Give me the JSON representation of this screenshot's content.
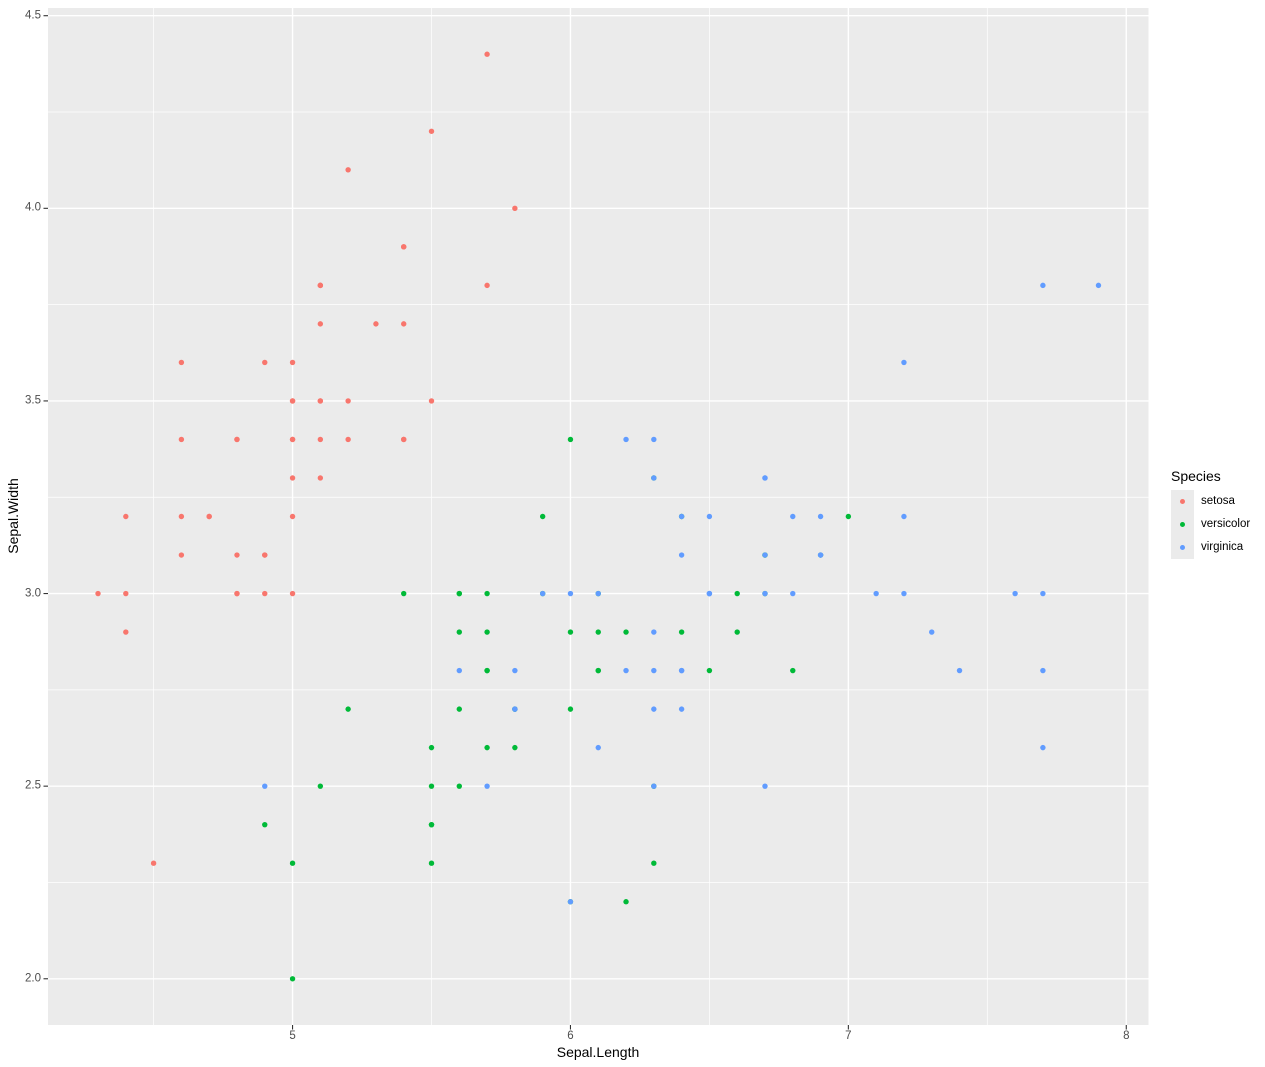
{
  "figure": {
    "x_axis_title": "Sepal.Length",
    "y_axis_title": "Sepal.Width"
  },
  "chart_data": {
    "type": "scatter",
    "title": "",
    "xlabel": "Sepal.Length",
    "ylabel": "Sepal.Width",
    "xlim": [
      4.12,
      8.08
    ],
    "ylim": [
      1.88,
      4.52
    ],
    "grid": "on",
    "panel_background": "#EBEBEB",
    "gridline_color": "#FFFFFF",
    "tick_mark_color": "#333333",
    "tick_text_color": "#4D4D4D",
    "x_ticks": {
      "values": [
        5,
        6,
        7,
        8
      ],
      "labels": [
        "5",
        "6",
        "7",
        "8"
      ],
      "minor": [
        4.5,
        5.5,
        6.5,
        7.5
      ]
    },
    "y_ticks": {
      "values": [
        2.0,
        2.5,
        3.0,
        3.5,
        4.0,
        4.5
      ],
      "labels": [
        "2.0",
        "2.5",
        "3.0",
        "3.5",
        "4.0",
        "4.5"
      ],
      "minor": [
        2.25,
        2.75,
        3.25,
        3.75,
        4.25
      ]
    },
    "legend": {
      "title": "Species",
      "position": "right",
      "key_background": "#EBEBEB"
    },
    "series": [
      {
        "name": "setosa",
        "color": "#F8766D",
        "points": [
          [
            5.1,
            3.5
          ],
          [
            4.9,
            3.0
          ],
          [
            4.7,
            3.2
          ],
          [
            4.6,
            3.1
          ],
          [
            5.0,
            3.6
          ],
          [
            5.4,
            3.9
          ],
          [
            4.6,
            3.4
          ],
          [
            5.0,
            3.4
          ],
          [
            4.4,
            2.9
          ],
          [
            4.9,
            3.1
          ],
          [
            5.4,
            3.7
          ],
          [
            4.8,
            3.4
          ],
          [
            4.8,
            3.0
          ],
          [
            4.3,
            3.0
          ],
          [
            5.8,
            4.0
          ],
          [
            5.7,
            4.4
          ],
          [
            5.4,
            3.9
          ],
          [
            5.1,
            3.5
          ],
          [
            5.7,
            3.8
          ],
          [
            5.1,
            3.8
          ],
          [
            5.4,
            3.4
          ],
          [
            5.1,
            3.7
          ],
          [
            4.6,
            3.6
          ],
          [
            5.1,
            3.3
          ],
          [
            4.8,
            3.4
          ],
          [
            5.0,
            3.0
          ],
          [
            5.0,
            3.4
          ],
          [
            5.2,
            3.5
          ],
          [
            5.2,
            3.4
          ],
          [
            4.7,
            3.2
          ],
          [
            4.8,
            3.1
          ],
          [
            5.4,
            3.4
          ],
          [
            5.2,
            4.1
          ],
          [
            5.5,
            4.2
          ],
          [
            4.9,
            3.1
          ],
          [
            5.0,
            3.2
          ],
          [
            5.5,
            3.5
          ],
          [
            4.9,
            3.6
          ],
          [
            4.4,
            3.0
          ],
          [
            5.1,
            3.4
          ],
          [
            5.0,
            3.5
          ],
          [
            4.5,
            2.3
          ],
          [
            4.4,
            3.2
          ],
          [
            5.0,
            3.5
          ],
          [
            5.1,
            3.8
          ],
          [
            4.8,
            3.0
          ],
          [
            5.1,
            3.8
          ],
          [
            4.6,
            3.2
          ],
          [
            5.3,
            3.7
          ],
          [
            5.0,
            3.3
          ]
        ]
      },
      {
        "name": "versicolor",
        "color": "#00BA38",
        "points": [
          [
            7.0,
            3.2
          ],
          [
            6.4,
            3.2
          ],
          [
            6.9,
            3.1
          ],
          [
            5.5,
            2.3
          ],
          [
            6.5,
            2.8
          ],
          [
            5.7,
            2.8
          ],
          [
            6.3,
            3.3
          ],
          [
            4.9,
            2.4
          ],
          [
            6.6,
            2.9
          ],
          [
            5.2,
            2.7
          ],
          [
            5.0,
            2.0
          ],
          [
            5.9,
            3.0
          ],
          [
            6.0,
            2.2
          ],
          [
            6.1,
            2.9
          ],
          [
            5.6,
            2.9
          ],
          [
            6.7,
            3.1
          ],
          [
            5.6,
            3.0
          ],
          [
            5.8,
            2.7
          ],
          [
            6.2,
            2.2
          ],
          [
            5.6,
            2.5
          ],
          [
            5.9,
            3.2
          ],
          [
            6.1,
            2.8
          ],
          [
            6.3,
            2.5
          ],
          [
            6.1,
            2.8
          ],
          [
            6.4,
            2.9
          ],
          [
            6.6,
            3.0
          ],
          [
            6.8,
            2.8
          ],
          [
            6.7,
            3.0
          ],
          [
            6.0,
            2.9
          ],
          [
            5.7,
            2.6
          ],
          [
            5.5,
            2.4
          ],
          [
            5.5,
            2.4
          ],
          [
            5.8,
            2.7
          ],
          [
            6.0,
            2.7
          ],
          [
            5.4,
            3.0
          ],
          [
            6.0,
            3.4
          ],
          [
            6.7,
            3.1
          ],
          [
            6.3,
            2.3
          ],
          [
            5.6,
            3.0
          ],
          [
            5.5,
            2.5
          ],
          [
            5.5,
            2.6
          ],
          [
            6.1,
            3.0
          ],
          [
            5.8,
            2.6
          ],
          [
            5.0,
            2.3
          ],
          [
            5.6,
            2.7
          ],
          [
            5.7,
            3.0
          ],
          [
            5.7,
            2.9
          ],
          [
            6.2,
            2.9
          ],
          [
            5.1,
            2.5
          ],
          [
            5.7,
            2.8
          ]
        ]
      },
      {
        "name": "virginica",
        "color": "#619CFF",
        "points": [
          [
            6.3,
            3.3
          ],
          [
            5.8,
            2.7
          ],
          [
            7.1,
            3.0
          ],
          [
            6.3,
            2.9
          ],
          [
            6.5,
            3.0
          ],
          [
            7.6,
            3.0
          ],
          [
            4.9,
            2.5
          ],
          [
            7.3,
            2.9
          ],
          [
            6.7,
            2.5
          ],
          [
            7.2,
            3.6
          ],
          [
            6.5,
            3.2
          ],
          [
            6.4,
            2.7
          ],
          [
            6.8,
            3.0
          ],
          [
            5.7,
            2.5
          ],
          [
            5.8,
            2.8
          ],
          [
            6.4,
            3.2
          ],
          [
            6.5,
            3.0
          ],
          [
            7.7,
            3.8
          ],
          [
            7.7,
            2.6
          ],
          [
            6.0,
            2.2
          ],
          [
            6.9,
            3.2
          ],
          [
            5.6,
            2.8
          ],
          [
            7.7,
            2.8
          ],
          [
            6.3,
            2.7
          ],
          [
            6.7,
            3.3
          ],
          [
            7.2,
            3.2
          ],
          [
            6.2,
            2.8
          ],
          [
            6.1,
            3.0
          ],
          [
            6.4,
            2.8
          ],
          [
            7.2,
            3.0
          ],
          [
            7.4,
            2.8
          ],
          [
            7.9,
            3.8
          ],
          [
            6.4,
            2.8
          ],
          [
            6.3,
            2.8
          ],
          [
            6.1,
            2.6
          ],
          [
            7.7,
            3.0
          ],
          [
            6.3,
            3.4
          ],
          [
            6.4,
            3.1
          ],
          [
            6.0,
            3.0
          ],
          [
            6.9,
            3.1
          ],
          [
            6.7,
            3.1
          ],
          [
            6.9,
            3.1
          ],
          [
            5.8,
            2.7
          ],
          [
            6.8,
            3.2
          ],
          [
            6.7,
            3.3
          ],
          [
            6.7,
            3.0
          ],
          [
            6.3,
            2.5
          ],
          [
            6.5,
            3.0
          ],
          [
            6.2,
            3.4
          ],
          [
            5.9,
            3.0
          ]
        ]
      }
    ]
  }
}
